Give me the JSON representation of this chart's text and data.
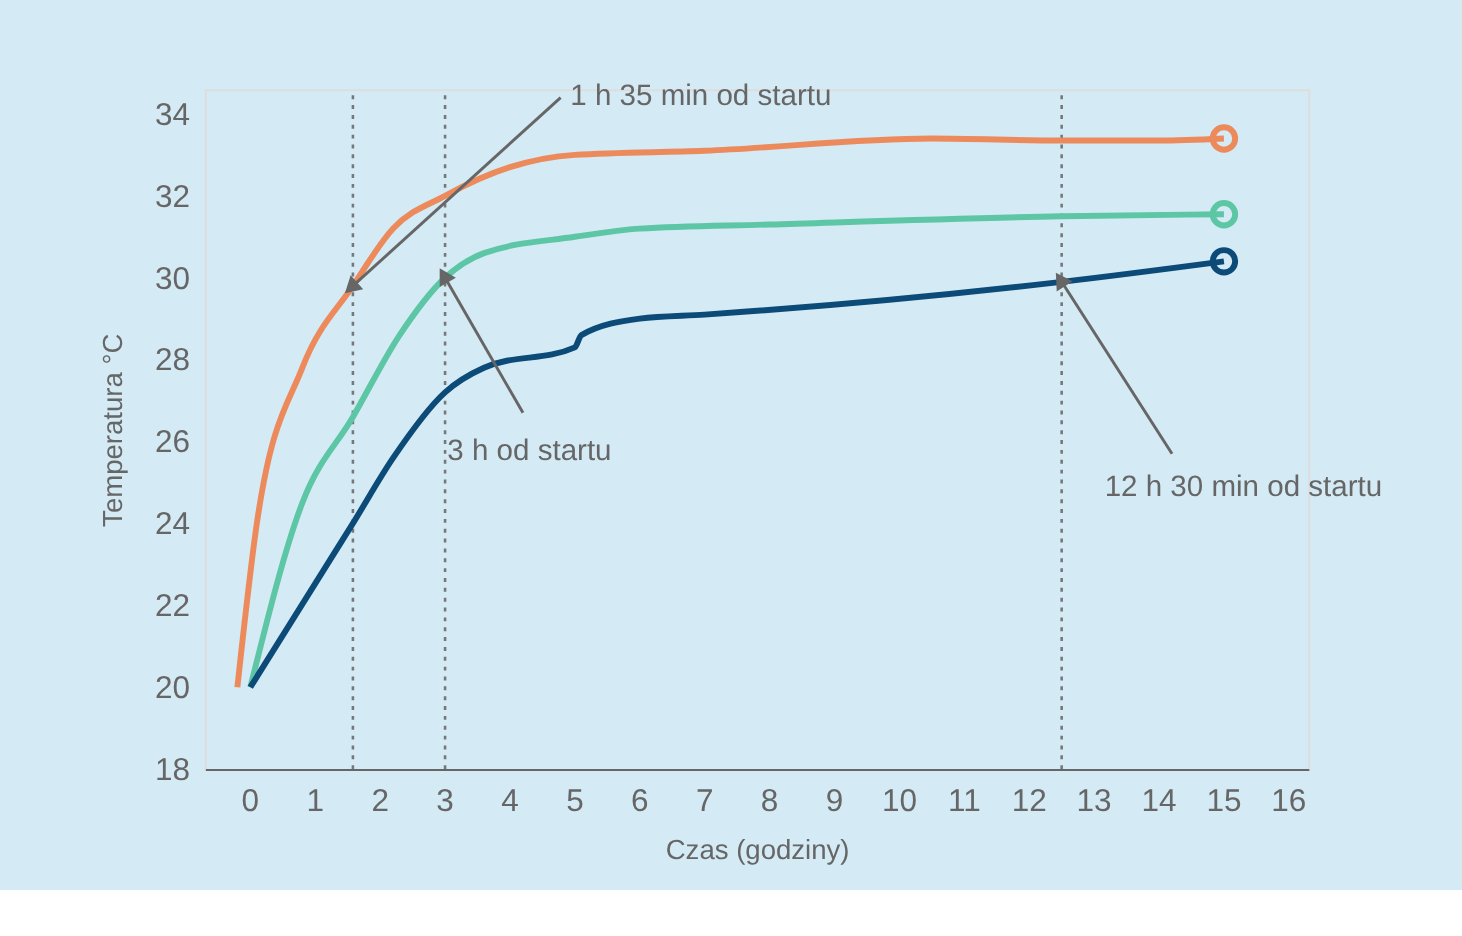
{
  "chart_data": {
    "type": "line",
    "xlabel": "Czas (godziny)",
    "ylabel": "Temperatura °C",
    "xlim": [
      -0.7,
      16.3
    ],
    "ylim": [
      18,
      34.6
    ],
    "xticks": [
      0,
      1,
      2,
      3,
      4,
      5,
      6,
      7,
      8,
      9,
      10,
      11,
      12,
      13,
      14,
      15,
      16
    ],
    "yticks": [
      18,
      20,
      22,
      24,
      26,
      28,
      30,
      32,
      34
    ],
    "grid": false,
    "legend": false,
    "series": [
      {
        "color": "#ec8a5c",
        "x": [
          -0.2,
          0.1,
          0.8,
          1.58,
          2.2,
          3,
          4,
          5,
          7,
          10.5,
          12.5,
          14,
          15
        ],
        "values": [
          20,
          24,
          27.8,
          29.8,
          31.2,
          32,
          32.7,
          33,
          33.1,
          33.4,
          33.35,
          33.35,
          33.4
        ]
      },
      {
        "color": "#5cc6a5",
        "x": [
          0,
          0.8,
          1.58,
          2.3,
          3,
          3.6,
          5,
          6,
          8,
          12.5,
          15
        ],
        "values": [
          20,
          24.5,
          26.6,
          28.6,
          30,
          30.6,
          31,
          31.2,
          31.3,
          31.5,
          31.55
        ]
      },
      {
        "color": "#0c4a78",
        "x": [
          0,
          1.58,
          2.2,
          3,
          3.6,
          5,
          5.1,
          6,
          7,
          12.5,
          15
        ],
        "values": [
          20,
          24,
          25.6,
          27.2,
          27.8,
          28.3,
          28.6,
          29,
          29.1,
          29.9,
          30.4
        ]
      }
    ],
    "ref_lines": [
      {
        "axis": "x",
        "value": 1.58,
        "color": "#777777",
        "line_style": "dotted"
      },
      {
        "axis": "x",
        "value": 3,
        "color": "#777777",
        "line_style": "dotted"
      },
      {
        "axis": "x",
        "value": 12.5,
        "color": "#777777",
        "line_style": "dotted"
      }
    ],
    "annotations": [
      {
        "text": "1 h 35 min od startu",
        "x": 1.58,
        "y": 29.8
      },
      {
        "text": "3 h od startu",
        "x": 3,
        "y": 30
      },
      {
        "text": "12 h 30 min od startu",
        "x": 12.5,
        "y": 29.9
      }
    ]
  }
}
